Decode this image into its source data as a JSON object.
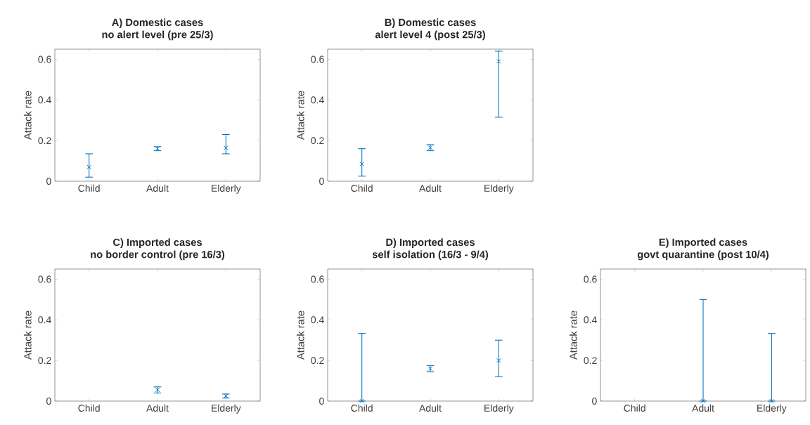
{
  "chart_data": [
    {
      "type": "scatter",
      "title": "A) Domestic cases",
      "subtitle": "no alert level (pre 25/3)",
      "ylabel": "Attack rate",
      "categories": [
        "Child",
        "Adult",
        "Elderly"
      ],
      "series": [
        {
          "color": "#0072bd",
          "values": [
            0.07,
            0.16,
            0.165
          ],
          "errors": [
            [
              0.02,
              0.135
            ],
            [
              0.15,
              0.17
            ],
            [
              0.135,
              0.23
            ]
          ]
        }
      ],
      "marker": "cross",
      "ylim": [
        0,
        0.65
      ],
      "yticks": [
        0,
        0.2,
        0.4,
        0.6
      ]
    },
    {
      "type": "scatter",
      "title": "B) Domestic cases",
      "subtitle": "alert level 4 (post 25/3)",
      "ylabel": "Attack rate",
      "categories": [
        "Child",
        "Adult",
        "Elderly"
      ],
      "series": [
        {
          "color": "#0072bd",
          "values": [
            0.085,
            0.165,
            0.59
          ],
          "errors": [
            [
              0.025,
              0.16
            ],
            [
              0.15,
              0.18
            ],
            [
              0.315,
              0.64
            ]
          ]
        }
      ],
      "marker": "cross",
      "ylim": [
        0,
        0.65
      ],
      "yticks": [
        0,
        0.2,
        0.4,
        0.6
      ]
    },
    {
      "type": "scatter",
      "title": "C) Imported cases",
      "subtitle": "no border control (pre 16/3)",
      "ylabel": "Attack rate",
      "categories": [
        "Child",
        "Adult",
        "Elderly"
      ],
      "series": [
        {
          "color": "#0072bd",
          "values": [
            null,
            0.055,
            0.025
          ],
          "errors": [
            null,
            [
              0.04,
              0.07
            ],
            [
              0.015,
              0.035
            ]
          ]
        }
      ],
      "marker": "cross",
      "ylim": [
        0,
        0.65
      ],
      "yticks": [
        0,
        0.2,
        0.4,
        0.6
      ]
    },
    {
      "type": "scatter",
      "title": "D) Imported cases",
      "subtitle": "self isolation (16/3 - 9/4)",
      "ylabel": "Attack rate",
      "categories": [
        "Child",
        "Adult",
        "Elderly"
      ],
      "series": [
        {
          "color": "#0072bd",
          "values": [
            0,
            0.16,
            0.2
          ],
          "errors": [
            [
              0,
              0.333
            ],
            [
              0.145,
              0.175
            ],
            [
              0.12,
              0.3
            ]
          ]
        }
      ],
      "marker": "cross",
      "ylim": [
        0,
        0.65
      ],
      "yticks": [
        0,
        0.2,
        0.4,
        0.6
      ]
    },
    {
      "type": "scatter",
      "title": "E) Imported cases",
      "subtitle": "govt quarantine (post 10/4)",
      "ylabel": "Attack rate",
      "categories": [
        "Child",
        "Adult",
        "Elderly"
      ],
      "series": [
        {
          "color": "#0072bd",
          "values": [
            null,
            0,
            0
          ],
          "errors": [
            null,
            [
              0,
              0.5
            ],
            [
              0,
              0.333
            ]
          ]
        }
      ],
      "marker": "cross",
      "ylim": [
        0,
        0.65
      ],
      "yticks": [
        0,
        0.2,
        0.4,
        0.6
      ]
    }
  ]
}
